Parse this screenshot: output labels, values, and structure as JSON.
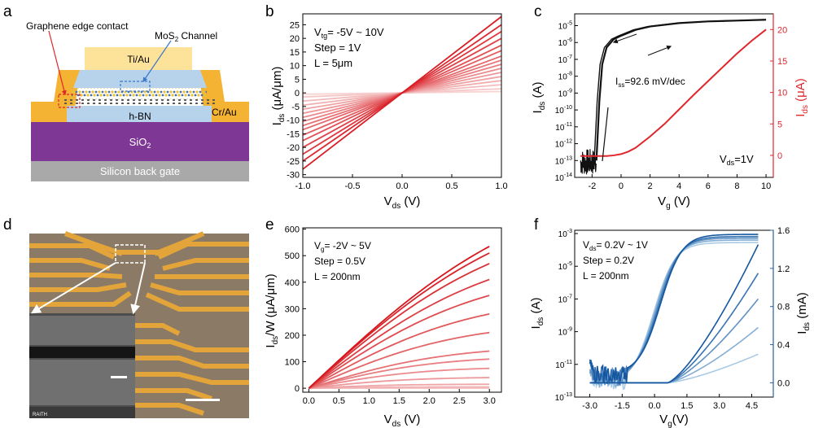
{
  "panel_letters": [
    "a",
    "b",
    "c",
    "d",
    "e",
    "f"
  ],
  "panel_a": {
    "graphene_label": "Graphene edge contact",
    "mos2_prefix": "MoS",
    "mos2_sub": "2",
    "mos2_suffix": " Channel",
    "top_contact": "Ti/Au",
    "side_contact": "Cr/Au",
    "hbn": "h-BN",
    "sio2_prefix": "SiO",
    "sio2_sub": "2",
    "substrate": "Silicon back gate",
    "colors": {
      "gold": "#f5b333",
      "tiau": "#fde39a",
      "hbn": "#b7d3ec",
      "sio2": "#7e3794",
      "si": "#a9a9a9",
      "red": "#e0262b",
      "blue": "#3a77c8"
    }
  },
  "panel_d": {
    "sem_brand": "RAITH",
    "colors": {
      "background": "#8a7a66",
      "electrode": "#e3a43a",
      "sem": "#4d4d4d"
    }
  },
  "chart_data": [
    {
      "panel": "b",
      "type": "line",
      "title": "",
      "annotations": [
        "V",
        "tg",
        "= -5V ~ 10V",
        "Step = 1V",
        "L = 5μm"
      ],
      "xlabel": {
        "main": "V",
        "sub": "ds",
        "unit": " (V)"
      },
      "ylabel": {
        "main": "I",
        "sub": "ds",
        "unit": " (μA/μm)"
      },
      "xlim": [
        -1.0,
        1.0
      ],
      "ylim": [
        -31,
        29
      ],
      "xticks": [
        -1.0,
        -0.5,
        0.0,
        0.5,
        1.0
      ],
      "xtick_labels": [
        "-1.0",
        "-0.5",
        "0.0",
        "0.5",
        "1.0"
      ],
      "yticks": [
        -30,
        -25,
        -20,
        -15,
        -10,
        -5,
        0,
        5,
        10,
        15,
        20,
        25
      ],
      "ytick_labels": [
        "-30",
        "-25",
        "-20",
        "-15",
        "-10",
        "-5",
        "0",
        "5",
        "10",
        "15",
        "20",
        "25"
      ],
      "series_count": 16,
      "slopes_uA_per_um_per_V": [
        0.5,
        1.5,
        3.0,
        4.5,
        6.0,
        7.5,
        9.0,
        10.5,
        12.0,
        13.5,
        15.5,
        17.5,
        20.0,
        22.5,
        25.0,
        28.0
      ],
      "x": [
        -1.0,
        1.0
      ],
      "colors": [
        "#f7d3d3",
        "#d91f26"
      ]
    },
    {
      "panel": "c",
      "type": "line",
      "annotations": {
        "ss_main": "I",
        "ss_sub": "ss",
        "ss_rest": "=92.6 mV/dec",
        "vds_main": "V",
        "vds_sub": "ds",
        "vds_rest": "=1V"
      },
      "xlabel": {
        "main": "V",
        "sub": "g",
        "unit": " (V)"
      },
      "ylabel_left": {
        "main": "I",
        "sub": "ds",
        "unit": " (A)"
      },
      "ylabel_right": {
        "main": "I",
        "sub": "ds",
        "unit": " (μA)"
      },
      "xlim": [
        -3.2,
        10.5
      ],
      "ylim_left_log10": [
        -14,
        -4.3
      ],
      "ylim_right": [
        -3.5,
        22.5
      ],
      "xticks": [
        -2,
        0,
        2,
        4,
        6,
        8,
        10
      ],
      "xtick_labels": [
        "-2",
        "0",
        "2",
        "4",
        "6",
        "8",
        "10"
      ],
      "yticks_left_exp": [
        -14,
        -13,
        -12,
        -11,
        -10,
        -9,
        -8,
        -7,
        -6,
        -5
      ],
      "yticks_right": [
        0,
        5,
        10,
        15,
        20
      ],
      "ytick_right_labels": [
        "0",
        "5",
        "10",
        "15",
        "20"
      ],
      "series": [
        {
          "name": "log",
          "axis": "left",
          "color": "#111111",
          "x": [
            -1.7,
            -1.5,
            -1.3,
            -1.0,
            -0.5,
            0.0,
            1.0,
            2.0,
            4.0,
            6.0,
            8.0,
            10.0
          ],
          "log10_y": [
            -13.0,
            -9.5,
            -7.3,
            -6.3,
            -5.8,
            -5.6,
            -5.25,
            -5.05,
            -4.85,
            -4.75,
            -4.7,
            -4.65
          ]
        },
        {
          "name": "linear",
          "axis": "right",
          "color": "#e0262b",
          "x": [
            -2.8,
            -1.0,
            -0.5,
            0.0,
            0.5,
            1.0,
            2.0,
            3.0,
            4.0,
            5.0,
            6.0,
            7.0,
            8.0,
            9.0,
            10.0
          ],
          "y": [
            -0.1,
            -0.1,
            0.0,
            0.2,
            0.6,
            1.2,
            3.0,
            5.0,
            7.3,
            9.6,
            11.8,
            14.0,
            16.2,
            18.2,
            20.0
          ]
        }
      ]
    },
    {
      "panel": "e",
      "type": "line",
      "annotations": [
        "V",
        "g",
        "= -2V ~ 5V",
        "Step = 0.5V",
        "L = 200nm"
      ],
      "xlabel": {
        "main": "V",
        "sub": "ds",
        "unit": " (V)"
      },
      "ylabel": {
        "main": "I",
        "sub": "ds",
        "unit": "/W (μA/μm)"
      },
      "xlim": [
        -0.1,
        3.2
      ],
      "ylim": [
        -15,
        605
      ],
      "xticks": [
        0.0,
        0.5,
        1.0,
        1.5,
        2.0,
        2.5,
        3.0
      ],
      "xtick_labels": [
        "0.0",
        "0.5",
        "1.0",
        "1.5",
        "2.0",
        "2.5",
        "3.0"
      ],
      "yticks": [
        0,
        100,
        200,
        300,
        400,
        500,
        600
      ],
      "ytick_labels": [
        "0",
        "100",
        "200",
        "300",
        "400",
        "500",
        "600"
      ],
      "series_count": 15,
      "endpoints_at_3V": [
        0,
        2,
        5,
        15,
        40,
        75,
        110,
        140,
        210,
        280,
        350,
        410,
        470,
        510,
        535
      ],
      "colors": [
        "#f6cccc",
        "#d6171d"
      ]
    },
    {
      "panel": "f",
      "type": "line",
      "annotations": [
        "V",
        "ds",
        "= 0.2V ~ 1V",
        "Step = 0.2V",
        "L = 200nm"
      ],
      "xlabel": {
        "main": "V",
        "sub": "g",
        "unit": "(V)"
      },
      "ylabel_left": {
        "main": "I",
        "sub": "ds",
        "unit": " (A)"
      },
      "ylabel_right": {
        "main": "I",
        "sub": "ds",
        "unit": " (mA)"
      },
      "xlim": [
        -3.7,
        5.5
      ],
      "ylim_left_log10": [
        -13,
        -2.8
      ],
      "ylim_right": [
        -0.15,
        1.6
      ],
      "xticks": [
        -3.0,
        -1.5,
        0.0,
        1.5,
        3.0,
        4.5
      ],
      "xtick_labels": [
        "-3.0",
        "-1.5",
        "0.0",
        "1.5",
        "3.0",
        "4.5"
      ],
      "yticks_left_exp": [
        -13,
        -11,
        -9,
        -7,
        -5,
        -3
      ],
      "yticks_right": [
        0.0,
        0.4,
        0.8,
        1.2,
        1.6
      ],
      "ytick_right_labels": [
        "0.0",
        "0.4",
        "0.8",
        "1.2",
        "1.6"
      ],
      "vds_values": [
        0.2,
        0.4,
        0.6,
        0.8,
        1.0
      ],
      "log_plateau_log10": [
        -3.55,
        -3.4,
        -3.28,
        -3.18,
        -3.05
      ],
      "linear_end_mA": [
        0.3,
        0.58,
        0.88,
        1.15,
        1.45
      ],
      "colors": [
        "#a9cbe6",
        "#1457a0"
      ]
    }
  ]
}
